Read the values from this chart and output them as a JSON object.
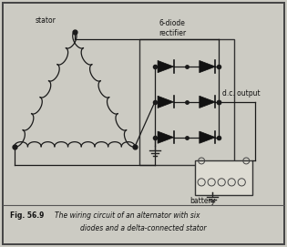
{
  "bg_color": "#cccbc3",
  "inner_bg": "#d8d7cf",
  "border_color": "#444444",
  "line_color": "#1a1a1a",
  "diode_color": "#111111",
  "ground_color": "#222222",
  "title_bold": "Fig. 56.9",
  "title_italic": "The wiring circuit of an alternator with six",
  "title_italic2": "diodes and a delta-connected stator",
  "label_stator": "stator",
  "label_rectifier_1": "6-diode",
  "label_rectifier_2": "rectifier",
  "label_output": "d.c. output",
  "label_battery": "battery",
  "fig_width": 3.15,
  "fig_height": 2.71,
  "dpi": 100
}
